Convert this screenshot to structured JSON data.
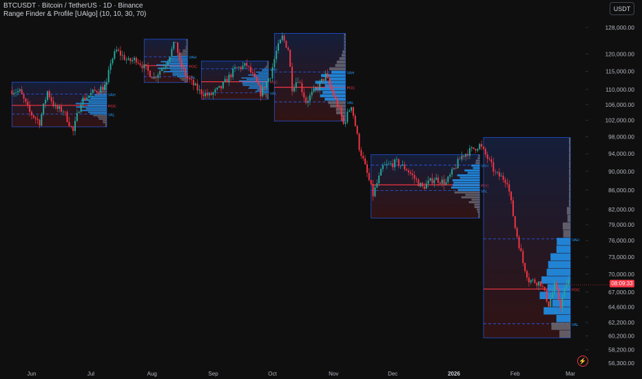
{
  "header": {
    "title": "BTCUSDT · Bitcoin / TetherUS · 1D · Binance",
    "indicator": "Range Finder & Profile [UAlgo] (10, 10, 30, 70)"
  },
  "currency_button": "USDT",
  "last_price_tag": "08:09:33",
  "colors": {
    "background": "#0f0f0f",
    "up": "#26a69a",
    "down": "#f23645",
    "box_border": "#2962ff",
    "profile": "#2196f3",
    "profile_low": "#787b86",
    "poc": "#f23645"
  },
  "chart_data": {
    "type": "candlestick",
    "y_scale": "log",
    "ylim": [
      56300,
      132000
    ],
    "y_tick_labels": [
      "128,000.00",
      "120,000.00",
      "115,000.00",
      "110,000.00",
      "106,000.00",
      "102,000.00",
      "98,000.00",
      "94,000.00",
      "90,000.00",
      "86,000.00",
      "82,000.00",
      "79,000.00",
      "76,000.00",
      "73,000.00",
      "70,000.00",
      "67,000.00",
      "64,600.00",
      "62,200.00",
      "60,200.00",
      "58,200.00",
      "56,300.00"
    ],
    "x_tick_labels": [
      "Jun",
      "Jul",
      "Aug",
      "Sep",
      "Oct",
      "Nov",
      "Dec",
      "2026",
      "Feb",
      "Mar"
    ],
    "ranges": [
      {
        "start": "2025-05-22",
        "end": "2025-07-09",
        "top": 112000,
        "bottom": 100400,
        "vah": 108800,
        "poc": 105800,
        "val": 103600,
        "labels": [
          "VAH",
          "POC",
          "VAL"
        ]
      },
      {
        "start": "2025-07-28",
        "end": "2025-08-19",
        "top": 124400,
        "bottom": 111900,
        "vah": 119200,
        "poc": 116600,
        "val": 113500,
        "labels": [
          "VAH",
          "POC",
          "VAL"
        ]
      },
      {
        "start": "2025-08-26",
        "end": "2025-09-29",
        "top": 117900,
        "bottom": 107400,
        "vah": 115700,
        "poc": 112100,
        "val": 109100,
        "labels": [
          "VAH",
          "POC",
          "VAL"
        ]
      },
      {
        "start": "2025-10-02",
        "end": "2025-11-07",
        "top": 126200,
        "bottom": 101800,
        "vah": 114800,
        "poc": 110600,
        "val": 106700,
        "labels": [
          "VAH",
          "POC",
          "VAL"
        ]
      },
      {
        "start": "2025-11-20",
        "end": "2026-01-14",
        "top": 93800,
        "bottom": 80300,
        "vah": 91400,
        "poc": 87100,
        "val": 85900,
        "labels": [
          "VAH",
          "POC",
          "VAL"
        ]
      },
      {
        "start": "2026-01-16",
        "end": "2026-03-01",
        "top": 97800,
        "bottom": 59900,
        "vah": 76300,
        "poc": 67500,
        "val": 62000,
        "labels": [
          "VAH",
          "POC",
          "VAL"
        ]
      }
    ],
    "ohlc_path": [
      [
        "2025-05-22",
        109700
      ],
      [
        "2025-05-26",
        109400
      ],
      [
        "2025-05-31",
        104000
      ],
      [
        "2025-06-05",
        101500
      ],
      [
        "2025-06-09",
        109500
      ],
      [
        "2025-06-13",
        105000
      ],
      [
        "2025-06-17",
        104500
      ],
      [
        "2025-06-22",
        99200
      ],
      [
        "2025-06-26",
        107000
      ],
      [
        "2025-07-03",
        109500
      ],
      [
        "2025-07-09",
        111200
      ],
      [
        "2025-07-11",
        117800
      ],
      [
        "2025-07-14",
        121000
      ],
      [
        "2025-07-20",
        117800
      ],
      [
        "2025-07-24",
        118500
      ],
      [
        "2025-08-02",
        113200
      ],
      [
        "2025-08-08",
        117300
      ],
      [
        "2025-08-13",
        123800
      ],
      [
        "2025-08-15",
        117300
      ],
      [
        "2025-08-19",
        113000
      ],
      [
        "2025-08-25",
        109500
      ],
      [
        "2025-08-30",
        108300
      ],
      [
        "2025-09-05",
        110500
      ],
      [
        "2025-09-12",
        115600
      ],
      [
        "2025-09-18",
        116700
      ],
      [
        "2025-09-22",
        112700
      ],
      [
        "2025-09-25",
        109000
      ],
      [
        "2025-09-30",
        114000
      ],
      [
        "2025-10-03",
        120700
      ],
      [
        "2025-10-06",
        125000
      ],
      [
        "2025-10-09",
        121500
      ],
      [
        "2025-10-11",
        110500
      ],
      [
        "2025-10-14",
        113000
      ],
      [
        "2025-10-18",
        106800
      ],
      [
        "2025-10-24",
        110700
      ],
      [
        "2025-10-28",
        113800
      ],
      [
        "2025-11-04",
        104500
      ],
      [
        "2025-11-06",
        101000
      ],
      [
        "2025-11-10",
        106000
      ],
      [
        "2025-11-14",
        95500
      ],
      [
        "2025-11-21",
        85000
      ],
      [
        "2025-11-26",
        91000
      ],
      [
        "2025-12-03",
        92000
      ],
      [
        "2025-12-08",
        90500
      ],
      [
        "2025-12-16",
        86500
      ],
      [
        "2025-12-22",
        88500
      ],
      [
        "2025-12-28",
        87500
      ],
      [
        "2026-01-05",
        93500
      ],
      [
        "2026-01-14",
        96000
      ],
      [
        "2026-01-18",
        93000
      ],
      [
        "2026-01-22",
        89500
      ],
      [
        "2026-01-28",
        88000
      ],
      [
        "2026-02-01",
        78500
      ],
      [
        "2026-02-05",
        72000
      ],
      [
        "2026-02-08",
        69000
      ],
      [
        "2026-02-14",
        68500
      ],
      [
        "2026-02-18",
        65000
      ],
      [
        "2026-02-21",
        68000
      ],
      [
        "2026-02-24",
        64800
      ],
      [
        "2026-02-27",
        68500
      ],
      [
        "2026-03-01",
        69000
      ]
    ]
  }
}
